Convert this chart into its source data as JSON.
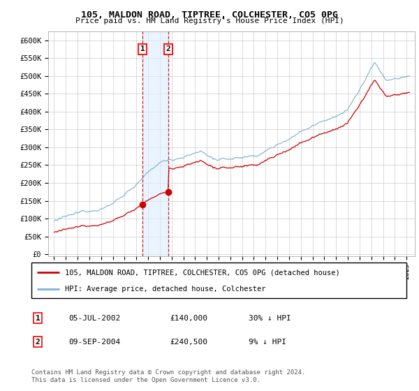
{
  "title": "105, MALDON ROAD, TIPTREE, COLCHESTER, CO5 0PG",
  "subtitle": "Price paid vs. HM Land Registry's House Price Index (HPI)",
  "ylim": [
    0,
    620000
  ],
  "sale1_year": 2002.54,
  "sale1_price": 140000,
  "sale2_year": 2004.71,
  "sale2_price": 240500,
  "hpi_color": "#7ab0d4",
  "price_color": "#cc0000",
  "shade_color": "#ddeeff",
  "grid_color": "#cccccc",
  "background_color": "#ffffff",
  "legend_entries": [
    "105, MALDON ROAD, TIPTREE, COLCHESTER, CO5 0PG (detached house)",
    "HPI: Average price, detached house, Colchester"
  ],
  "table_rows": [
    [
      "1",
      "05-JUL-2002",
      "£140,000",
      "30% ↓ HPI"
    ],
    [
      "2",
      "09-SEP-2004",
      "£240,500",
      "9% ↓ HPI"
    ]
  ],
  "footnote": "Contains HM Land Registry data © Crown copyright and database right 2024.\nThis data is licensed under the Open Government Licence v3.0."
}
